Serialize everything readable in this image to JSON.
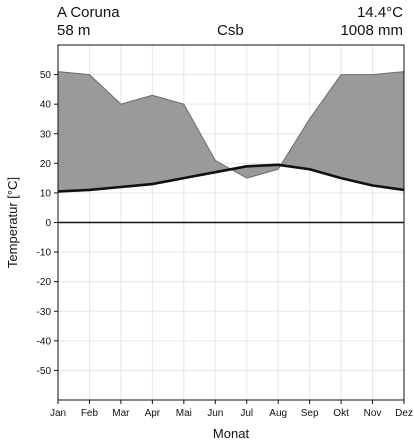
{
  "header": {
    "station": "A Coruna",
    "altitude": "58 m",
    "climate_class": "Csb",
    "mean_temperature": "14.4°C",
    "annual_precipitation": "1008 mm"
  },
  "chart_data": {
    "type": "area",
    "title": "",
    "xlabel": "Monat",
    "ylabel": "Temperatur [°C]",
    "categories": [
      "Jan",
      "Feb",
      "Mar",
      "Apr",
      "Mai",
      "Jun",
      "Jul",
      "Aug",
      "Sep",
      "Okt",
      "Nov",
      "Dez"
    ],
    "ylim": [
      -60,
      60
    ],
    "yticks": [
      -50,
      -40,
      -30,
      -20,
      -10,
      0,
      10,
      20,
      30,
      40,
      50
    ],
    "grid": true,
    "colors": {
      "precipitation_fill": "#9a9a9a",
      "temperature_line": "#111111",
      "zero_line": "#111111"
    },
    "series": [
      {
        "role": "temperature",
        "values": [
          10.5,
          11,
          12,
          13,
          15,
          17,
          19,
          19.5,
          18,
          15,
          12.5,
          11
        ]
      },
      {
        "role": "precipitation_scaled",
        "values": [
          51,
          50,
          40,
          43,
          40,
          21,
          15,
          18,
          35,
          50,
          50,
          51
        ]
      }
    ]
  }
}
